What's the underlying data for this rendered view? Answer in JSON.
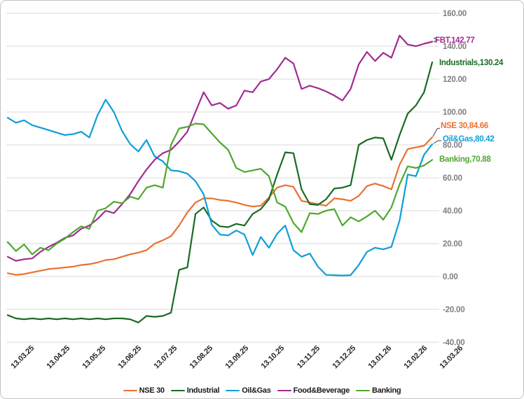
{
  "chart_data": {
    "type": "line",
    "title": "",
    "xlabel": "",
    "ylabel": "",
    "grid": "horizontal",
    "legend_position": "bottom",
    "ylim": [
      -40,
      160
    ],
    "y_tick_step": 20,
    "y_ticks": [
      160,
      140,
      120,
      100,
      80,
      60,
      40,
      20,
      0,
      -20,
      -40
    ],
    "y_tick_format": "2-decimals",
    "x_tick_labels": [
      "13.03.25",
      "13.04.25",
      "13.05.25",
      "13.06.25",
      "13.07.25",
      "13.08.25",
      "13.09.25",
      "13.10.25",
      "13.11.25",
      "13.12.25",
      "13.01.26",
      "13.02.26",
      "13.03.26"
    ],
    "x_range_note": "weekly samples from 13.03.25 to 13.03.26",
    "axis_label_color": "#7f7f7f",
    "x_label_color": "#262626",
    "gridline_color": "#d9d9d9",
    "series": [
      {
        "name": "NSE 30",
        "color": "#E97132",
        "end_label": "NSE 30,84.66",
        "end_value": 84.66,
        "values": [
          2.0,
          1.0,
          1.5,
          2.5,
          3.5,
          4.5,
          5.0,
          5.5,
          6.0,
          7.0,
          7.5,
          8.5,
          10.0,
          10.5,
          12.0,
          13.5,
          14.5,
          16.0,
          20.0,
          22.0,
          24.5,
          31.0,
          39.0,
          45.0,
          47.5,
          47.5,
          46.5,
          46.0,
          45.0,
          43.5,
          42.5,
          43.0,
          48.0,
          54.0,
          55.5,
          54.5,
          46.0,
          45.0,
          44.0,
          43.0,
          47.5,
          47.0,
          46.0,
          49.0,
          55.0,
          56.5,
          55.0,
          53.0,
          68.0,
          77.5,
          78.5,
          79.5,
          84.66
        ]
      },
      {
        "name": "Industrial",
        "color": "#196B24",
        "end_label": "Industrials,130.24",
        "end_value": 130.24,
        "values": [
          -23.5,
          -25.5,
          -26.0,
          -25.5,
          -26.0,
          -25.5,
          -26.0,
          -25.5,
          -26.0,
          -25.5,
          -26.0,
          -25.5,
          -26.0,
          -25.5,
          -25.5,
          -26.0,
          -28.0,
          -24.0,
          -24.5,
          -24.0,
          -22.0,
          4.0,
          5.5,
          38.0,
          42.0,
          34.0,
          30.5,
          30.0,
          32.0,
          31.0,
          38.0,
          41.0,
          47.0,
          62.0,
          75.5,
          75.0,
          53.0,
          44.0,
          43.5,
          47.0,
          53.5,
          54.0,
          55.5,
          80.0,
          83.0,
          84.5,
          84.0,
          71.0,
          86.0,
          99.0,
          104.0,
          112.0,
          130.24
        ]
      },
      {
        "name": "Oil&Gas",
        "color": "#0F9ED5",
        "end_label": "Oil&Gas,80.42",
        "end_value": 80.42,
        "values": [
          96.5,
          93.5,
          95.0,
          92.0,
          90.5,
          89.0,
          87.5,
          86.0,
          86.5,
          88.0,
          84.5,
          98.0,
          107.5,
          100.0,
          88.5,
          80.5,
          76.0,
          83.0,
          73.0,
          70.0,
          64.5,
          64.0,
          62.5,
          58.0,
          50.0,
          31.5,
          25.5,
          25.0,
          28.0,
          25.5,
          13.0,
          24.0,
          17.5,
          26.0,
          31.0,
          16.0,
          12.0,
          14.0,
          6.0,
          1.0,
          0.8,
          0.6,
          0.8,
          7.0,
          15.0,
          17.5,
          16.5,
          18.0,
          34.0,
          62.0,
          61.0,
          74.0,
          80.42
        ]
      },
      {
        "name": "Food&Beverage",
        "color": "#A02B93",
        "end_label": "FBT,142.77",
        "end_value": 142.77,
        "values": [
          12.0,
          9.5,
          10.5,
          11.0,
          15.0,
          18.0,
          20.5,
          23.5,
          25.0,
          29.0,
          31.0,
          35.0,
          40.0,
          38.5,
          44.0,
          50.0,
          58.0,
          65.0,
          71.0,
          75.0,
          77.0,
          82.0,
          88.0,
          100.0,
          112.0,
          104.0,
          105.5,
          102.0,
          104.0,
          113.0,
          112.0,
          118.5,
          120.0,
          126.0,
          133.0,
          129.5,
          114.0,
          116.0,
          114.5,
          112.5,
          110.0,
          107.0,
          114.0,
          129.0,
          136.5,
          131.0,
          136.0,
          133.0,
          146.5,
          141.0,
          140.0,
          141.5,
          142.77
        ]
      },
      {
        "name": "Banking",
        "color": "#4EA72E",
        "end_label": "Banking,70.88",
        "end_value": 70.88,
        "values": [
          21.0,
          15.5,
          19.5,
          13.5,
          17.5,
          16.0,
          20.0,
          23.0,
          27.0,
          30.5,
          29.0,
          40.0,
          41.5,
          45.5,
          44.5,
          48.5,
          47.0,
          54.0,
          55.5,
          54.0,
          80.0,
          90.0,
          91.0,
          93.0,
          92.5,
          87.0,
          81.5,
          77.0,
          66.0,
          63.5,
          64.5,
          65.5,
          61.0,
          45.0,
          42.5,
          32.5,
          27.0,
          38.5,
          38.0,
          40.0,
          41.0,
          31.0,
          36.0,
          33.5,
          36.5,
          40.0,
          34.5,
          42.0,
          56.0,
          67.0,
          66.0,
          67.5,
          70.88
        ]
      }
    ],
    "legend": [
      "NSE 30",
      "Industrial",
      "Oil&Gas",
      "Food&Beverage",
      "Banking"
    ]
  }
}
